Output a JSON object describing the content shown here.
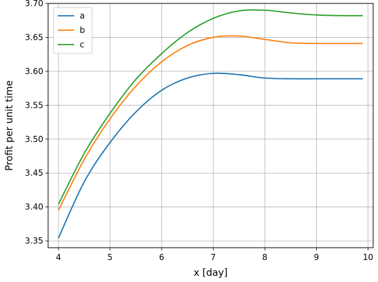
{
  "chart_data": {
    "type": "line",
    "title": "",
    "xlabel": "x [day]",
    "ylabel": "Profit per unit time",
    "xlim": [
      3.8,
      10.1
    ],
    "ylim": [
      3.34,
      3.7
    ],
    "xticks": [
      4,
      5,
      6,
      7,
      8,
      9,
      10
    ],
    "yticks": [
      3.35,
      3.4,
      3.45,
      3.5,
      3.55,
      3.6,
      3.65,
      3.7
    ],
    "xtick_labels": [
      "4",
      "5",
      "6",
      "7",
      "8",
      "9",
      "10"
    ],
    "ytick_labels": [
      "3.35",
      "3.40",
      "3.45",
      "3.50",
      "3.55",
      "3.60",
      "3.65",
      "3.70"
    ],
    "grid": true,
    "legend_position": "top-left",
    "series": [
      {
        "name": "a",
        "color": "#1f77b4",
        "x": [
          4.0,
          4.5,
          5.0,
          5.5,
          6.0,
          6.5,
          7.0,
          7.5,
          8.0,
          8.5,
          9.0,
          9.5,
          9.9
        ],
        "y": [
          3.354,
          3.437,
          3.495,
          3.54,
          3.572,
          3.59,
          3.597,
          3.595,
          3.59,
          3.589,
          3.589,
          3.589,
          3.589
        ]
      },
      {
        "name": "b",
        "color": "#ff7f0e",
        "x": [
          4.0,
          4.5,
          5.0,
          5.5,
          6.0,
          6.5,
          7.0,
          7.5,
          8.0,
          8.5,
          9.0,
          9.5,
          9.9
        ],
        "y": [
          3.395,
          3.47,
          3.53,
          3.578,
          3.614,
          3.638,
          3.65,
          3.652,
          3.647,
          3.642,
          3.641,
          3.641,
          3.641
        ]
      },
      {
        "name": "c",
        "color": "#2ca02c",
        "x": [
          4.0,
          4.5,
          5.0,
          5.5,
          6.0,
          6.5,
          7.0,
          7.5,
          8.0,
          8.5,
          9.0,
          9.5,
          9.9
        ],
        "y": [
          3.404,
          3.479,
          3.538,
          3.588,
          3.626,
          3.657,
          3.678,
          3.689,
          3.69,
          3.686,
          3.683,
          3.682,
          3.682
        ]
      }
    ]
  }
}
